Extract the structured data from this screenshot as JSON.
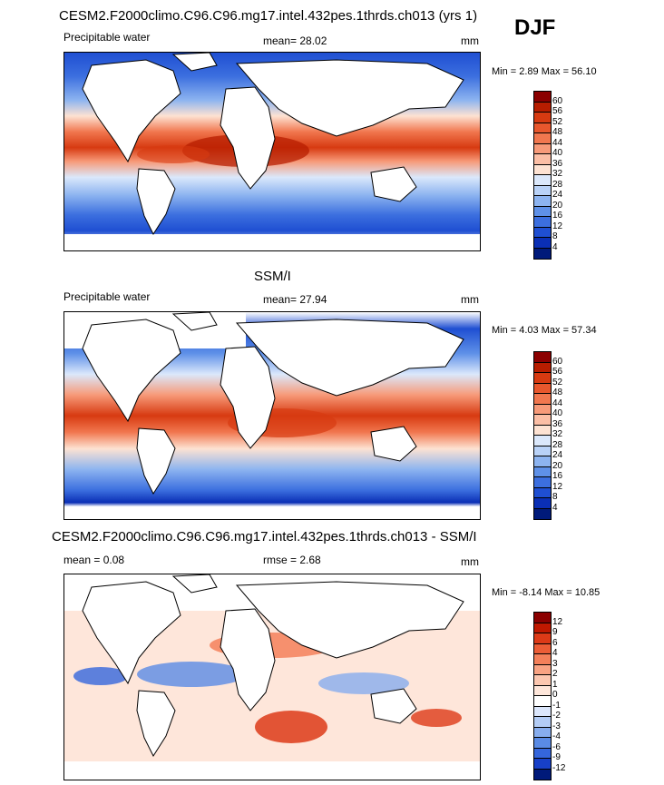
{
  "season": "DJF",
  "panels": [
    {
      "id": "model",
      "title": "CESM2.F2000climo.C96.C96.mg17.intel.432pes.1thrds.ch013 (yrs 1)",
      "left_label": "Precipitable water",
      "center_label": "mean=  28.02",
      "right_label": "mm",
      "minmax": "Min =   2.89 Max =  56.10",
      "colorbar": {
        "labels": [
          "60",
          "56",
          "52",
          "48",
          "44",
          "40",
          "36",
          "32",
          "28",
          "24",
          "20",
          "16",
          "12",
          "8",
          "4"
        ],
        "colors": [
          "#8b0000",
          "#b71d00",
          "#d73a11",
          "#e8572d",
          "#f1774f",
          "#f79a79",
          "#fbbea5",
          "#fde2d2",
          "#dbe8fb",
          "#b9d2f7",
          "#8db4f0",
          "#5f91e8",
          "#3c6fdf",
          "#1f4fd2",
          "#0a2fb5",
          "#001a7a"
        ]
      }
    },
    {
      "id": "obs",
      "title": "SSM/I",
      "left_label": "Precipitable water",
      "center_label": "mean=  27.94",
      "right_label": "mm",
      "minmax": "Min =   4.03 Max =  57.34",
      "colorbar": {
        "labels": [
          "60",
          "56",
          "52",
          "48",
          "44",
          "40",
          "36",
          "32",
          "28",
          "24",
          "20",
          "16",
          "12",
          "8",
          "4"
        ],
        "colors": [
          "#8b0000",
          "#b71d00",
          "#d73a11",
          "#e8572d",
          "#f1774f",
          "#f79a79",
          "#fbbea5",
          "#fde2d2",
          "#dbe8fb",
          "#b9d2f7",
          "#8db4f0",
          "#5f91e8",
          "#3c6fdf",
          "#1f4fd2",
          "#0a2fb5",
          "#001a7a"
        ]
      }
    },
    {
      "id": "diff",
      "title": "CESM2.F2000climo.C96.C96.mg17.intel.432pes.1thrds.ch013 - SSM/I",
      "left_label": "mean =   0.08",
      "center_label": "rmse =   2.68",
      "right_label": "mm",
      "minmax": "Min =  -8.14 Max =  10.85",
      "colorbar": {
        "labels": [
          "12",
          "9",
          "6",
          "4",
          "3",
          "2",
          "1",
          "0",
          "-1",
          "-2",
          "-3",
          "-4",
          "-6",
          "-9",
          "-12"
        ],
        "colors": [
          "#8b0000",
          "#c01800",
          "#dd3a17",
          "#ec5d36",
          "#f4805a",
          "#f9a383",
          "#fcc7b0",
          "#fee6da",
          "#ffffff",
          "#dbe6fb",
          "#b3ccf5",
          "#87adee",
          "#5a8be5",
          "#3566dc",
          "#1740c8",
          "#001a7a"
        ]
      }
    }
  ]
}
